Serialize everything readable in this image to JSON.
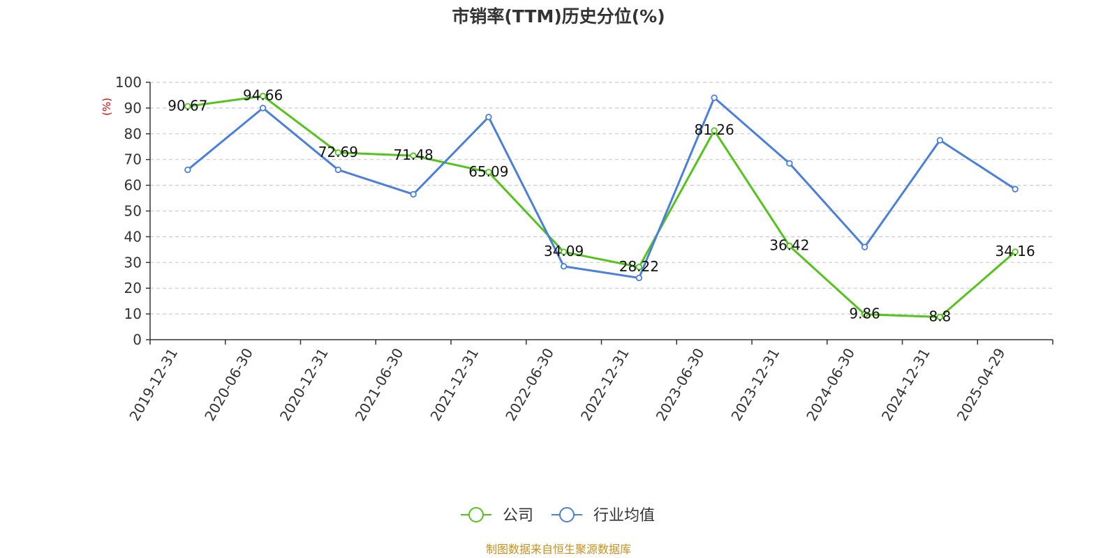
{
  "chart_data": {
    "type": "line",
    "title": "市销率(TTM)历史分位(%)",
    "ylabel": "(%)",
    "ylim": [
      0,
      100
    ],
    "yticks": [
      0,
      10,
      20,
      30,
      40,
      50,
      60,
      70,
      80,
      90,
      100
    ],
    "grid": true,
    "legend_position": "bottom-center",
    "categories": [
      "2019-12-31",
      "2020-06-30",
      "2020-12-31",
      "2021-06-30",
      "2021-12-31",
      "2022-06-30",
      "2022-12-31",
      "2023-06-30",
      "2023-12-31",
      "2024-06-30",
      "2024-12-31",
      "2025-04-29"
    ],
    "series": [
      {
        "name": "公司",
        "color": "#52c41a",
        "values": [
          90.67,
          94.66,
          72.69,
          71.48,
          65.09,
          34.09,
          28.22,
          81.26,
          36.42,
          9.86,
          8.8,
          34.16
        ],
        "labels": [
          "90.67",
          "94.66",
          "72.69",
          "71.48",
          "65.09",
          "34.09",
          "28.22",
          "81.26",
          "36.42",
          "9.86",
          "8.8",
          "34.16"
        ]
      },
      {
        "name": "行业均值",
        "color": "#4a7fdb",
        "values": [
          66,
          90,
          66,
          56.5,
          86.5,
          28.5,
          24,
          94,
          68.5,
          36,
          77.5,
          58.5
        ]
      }
    ],
    "source": "制图数据来自恒生聚源数据库",
    "source_color": "#c8901e",
    "ylabel_color": "#e00000",
    "axis_color": "#333333",
    "grid_color": "#cccccc"
  }
}
